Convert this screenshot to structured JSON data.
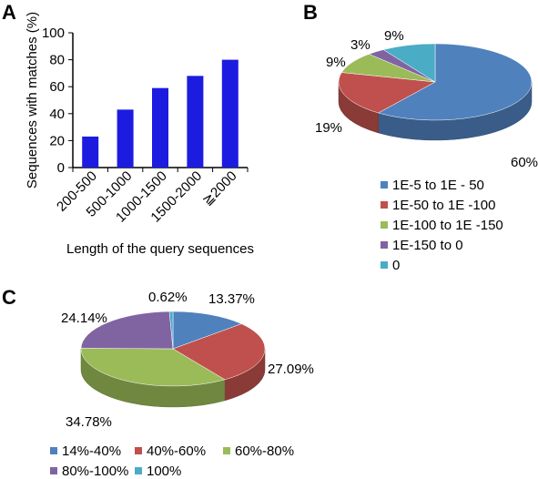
{
  "chart_data": [
    {
      "type": "bar",
      "panel": "A",
      "categories": [
        "200-500",
        "500-1000",
        "1000-1500",
        "1500-2000",
        "≧2000"
      ],
      "values": [
        23,
        43,
        59,
        68,
        80
      ],
      "xlabel": "Length of the query sequences",
      "ylabel": "Sequences with matches (%)",
      "ylim": [
        0,
        100
      ],
      "yticks": [
        0,
        20,
        40,
        60,
        80,
        100
      ],
      "color": "#1c1ce0"
    },
    {
      "type": "pie",
      "panel": "B",
      "labels": [
        "1E-5 to 1E - 50",
        "1E-50 to 1E -100",
        "1E-100 to 1E -150",
        "1E-150 to 0",
        "0"
      ],
      "values": [
        60,
        19,
        9,
        3,
        9
      ],
      "value_labels": [
        "60%",
        "19%",
        "9%",
        "3%",
        "9%"
      ],
      "colors": [
        "#4f81bd",
        "#c0504d",
        "#9bbb59",
        "#8064a2",
        "#4bacc6"
      ],
      "legend": "bottom"
    },
    {
      "type": "pie",
      "panel": "C",
      "labels": [
        "14%-40%",
        "40%-60%",
        "60%-80%",
        "80%-100%",
        "100%"
      ],
      "values": [
        13.37,
        27.09,
        34.78,
        24.14,
        0.62
      ],
      "value_labels": [
        "13.37%",
        "27.09%",
        "34.78%",
        "24.14%",
        "0.62%"
      ],
      "colors": [
        "#4f81bd",
        "#c0504d",
        "#9bbb59",
        "#8064a2",
        "#4bacc6"
      ],
      "legend": "bottom"
    }
  ]
}
